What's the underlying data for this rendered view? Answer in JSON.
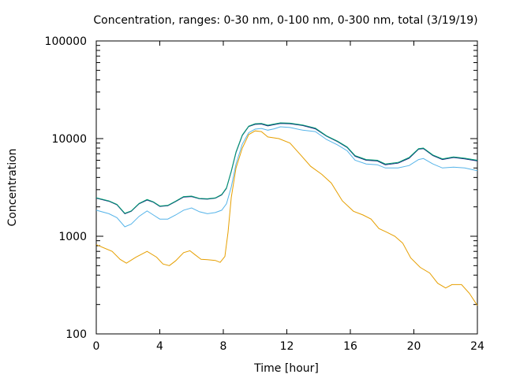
{
  "chart_data": {
    "type": "line",
    "title": "Concentration, ranges: 0-30 nm, 0-100 nm, 0-300 nm, total (3/19/19)",
    "xlabel": "Time [hour]",
    "ylabel": "Concentration",
    "xlim": [
      0,
      24
    ],
    "ylim": [
      100,
      100000
    ],
    "yscale": "log",
    "grid": false,
    "legend": "none",
    "x_ticks": [
      0,
      4,
      8,
      12,
      16,
      20,
      24
    ],
    "x_tick_labels": [
      "0",
      "4",
      "8",
      "12",
      "16",
      "20",
      "24"
    ],
    "y_ticks": [
      100,
      1000,
      10000,
      100000
    ],
    "y_tick_labels": [
      "100",
      "1000",
      "10000",
      "100000"
    ],
    "series": [
      {
        "color": "#e69f00",
        "points": [
          [
            0,
            820
          ],
          [
            1,
            700
          ],
          [
            1.5,
            580
          ],
          [
            1.9,
            530
          ],
          [
            2.5,
            610
          ],
          [
            3.2,
            700
          ],
          [
            3.8,
            610
          ],
          [
            4.2,
            520
          ],
          [
            4.6,
            500
          ],
          [
            5,
            560
          ],
          [
            5.5,
            680
          ],
          [
            5.9,
            710
          ],
          [
            6.2,
            650
          ],
          [
            6.6,
            580
          ],
          [
            7,
            575
          ],
          [
            7.5,
            565
          ],
          [
            7.8,
            540
          ],
          [
            8.1,
            620
          ],
          [
            8.3,
            1100
          ],
          [
            8.5,
            2500
          ],
          [
            8.8,
            5000
          ],
          [
            9.2,
            8000
          ],
          [
            9.6,
            11000
          ],
          [
            10,
            12000
          ],
          [
            10.4,
            11800
          ],
          [
            10.8,
            10400
          ],
          [
            11.5,
            10000
          ],
          [
            12.2,
            9000
          ],
          [
            12.8,
            7000
          ],
          [
            13.5,
            5200
          ],
          [
            14.2,
            4300
          ],
          [
            14.8,
            3500
          ],
          [
            15.5,
            2300
          ],
          [
            16.2,
            1800
          ],
          [
            16.8,
            1650
          ],
          [
            17.3,
            1500
          ],
          [
            17.8,
            1200
          ],
          [
            18.3,
            1100
          ],
          [
            18.8,
            1000
          ],
          [
            19.3,
            850
          ],
          [
            19.8,
            600
          ],
          [
            20.4,
            480
          ],
          [
            21,
            420
          ],
          [
            21.5,
            330
          ],
          [
            22,
            295
          ],
          [
            22.4,
            320
          ],
          [
            23,
            320
          ],
          [
            23.5,
            260
          ],
          [
            24,
            195
          ]
        ]
      },
      {
        "color": "#56b4e9",
        "points": [
          [
            0,
            1850
          ],
          [
            0.8,
            1700
          ],
          [
            1.3,
            1550
          ],
          [
            1.8,
            1250
          ],
          [
            2.2,
            1330
          ],
          [
            2.7,
            1600
          ],
          [
            3.2,
            1820
          ],
          [
            3.6,
            1650
          ],
          [
            4,
            1500
          ],
          [
            4.5,
            1500
          ],
          [
            5,
            1650
          ],
          [
            5.5,
            1850
          ],
          [
            6,
            1950
          ],
          [
            6.5,
            1780
          ],
          [
            7,
            1700
          ],
          [
            7.5,
            1750
          ],
          [
            7.9,
            1850
          ],
          [
            8.2,
            2150
          ],
          [
            8.5,
            3200
          ],
          [
            8.8,
            5500
          ],
          [
            9.2,
            8800
          ],
          [
            9.6,
            11500
          ],
          [
            10,
            12500
          ],
          [
            10.4,
            12700
          ],
          [
            10.8,
            12200
          ],
          [
            11.2,
            12600
          ],
          [
            11.6,
            13200
          ],
          [
            12.2,
            13000
          ],
          [
            13,
            12200
          ],
          [
            13.8,
            11800
          ],
          [
            14.5,
            9800
          ],
          [
            15.2,
            8600
          ],
          [
            15.8,
            7500
          ],
          [
            16.3,
            6000
          ],
          [
            17,
            5500
          ],
          [
            17.7,
            5400
          ],
          [
            18.2,
            5000
          ],
          [
            19,
            5000
          ],
          [
            19.7,
            5300
          ],
          [
            20.3,
            6100
          ],
          [
            20.6,
            6250
          ],
          [
            21.2,
            5500
          ],
          [
            21.8,
            5000
          ],
          [
            22.5,
            5100
          ],
          [
            23.2,
            5000
          ],
          [
            24,
            4700
          ]
        ]
      },
      {
        "color": "#1a237e",
        "points": [
          [
            0,
            2450
          ],
          [
            0.8,
            2280
          ],
          [
            1.3,
            2100
          ],
          [
            1.8,
            1700
          ],
          [
            2.2,
            1800
          ],
          [
            2.7,
            2150
          ],
          [
            3.2,
            2350
          ],
          [
            3.6,
            2230
          ],
          [
            4,
            2020
          ],
          [
            4.5,
            2050
          ],
          [
            5,
            2270
          ],
          [
            5.5,
            2520
          ],
          [
            6,
            2550
          ],
          [
            6.5,
            2420
          ],
          [
            7,
            2400
          ],
          [
            7.5,
            2450
          ],
          [
            7.9,
            2650
          ],
          [
            8.2,
            3100
          ],
          [
            8.5,
            4600
          ],
          [
            8.8,
            7200
          ],
          [
            9.2,
            10800
          ],
          [
            9.6,
            13300
          ],
          [
            10,
            14000
          ],
          [
            10.4,
            14100
          ],
          [
            10.8,
            13500
          ],
          [
            11.2,
            13900
          ],
          [
            11.6,
            14300
          ],
          [
            12.2,
            14200
          ],
          [
            13,
            13600
          ],
          [
            13.8,
            12600
          ],
          [
            14.5,
            10600
          ],
          [
            15.2,
            9300
          ],
          [
            15.8,
            8100
          ],
          [
            16.3,
            6600
          ],
          [
            17,
            6000
          ],
          [
            17.7,
            5900
          ],
          [
            18.2,
            5400
          ],
          [
            19,
            5600
          ],
          [
            19.7,
            6300
          ],
          [
            20.3,
            7800
          ],
          [
            20.6,
            7900
          ],
          [
            21.2,
            6700
          ],
          [
            21.8,
            6100
          ],
          [
            22.5,
            6400
          ],
          [
            23.2,
            6200
          ],
          [
            24,
            5900
          ]
        ]
      },
      {
        "color": "#009e73",
        "points": [
          [
            0,
            2480
          ],
          [
            0.8,
            2300
          ],
          [
            1.3,
            2120
          ],
          [
            1.8,
            1720
          ],
          [
            2.2,
            1820
          ],
          [
            2.7,
            2170
          ],
          [
            3.2,
            2380
          ],
          [
            3.6,
            2250
          ],
          [
            4,
            2040
          ],
          [
            4.5,
            2070
          ],
          [
            5,
            2290
          ],
          [
            5.5,
            2550
          ],
          [
            6,
            2580
          ],
          [
            6.5,
            2440
          ],
          [
            7,
            2420
          ],
          [
            7.5,
            2470
          ],
          [
            7.9,
            2680
          ],
          [
            8.2,
            3130
          ],
          [
            8.5,
            4650
          ],
          [
            8.8,
            7300
          ],
          [
            9.2,
            10900
          ],
          [
            9.6,
            13400
          ],
          [
            10,
            14200
          ],
          [
            10.4,
            14300
          ],
          [
            10.8,
            13700
          ],
          [
            11.2,
            14100
          ],
          [
            11.6,
            14500
          ],
          [
            12.2,
            14400
          ],
          [
            13,
            13800
          ],
          [
            13.8,
            12800
          ],
          [
            14.5,
            10700
          ],
          [
            15.2,
            9400
          ],
          [
            15.8,
            8200
          ],
          [
            16.3,
            6700
          ],
          [
            17,
            6100
          ],
          [
            17.7,
            6000
          ],
          [
            18.2,
            5500
          ],
          [
            19,
            5700
          ],
          [
            19.7,
            6400
          ],
          [
            20.3,
            7900
          ],
          [
            20.6,
            8000
          ],
          [
            21.2,
            6800
          ],
          [
            21.8,
            6200
          ],
          [
            22.5,
            6500
          ],
          [
            23.2,
            6300
          ],
          [
            24,
            6000
          ]
        ]
      }
    ]
  }
}
